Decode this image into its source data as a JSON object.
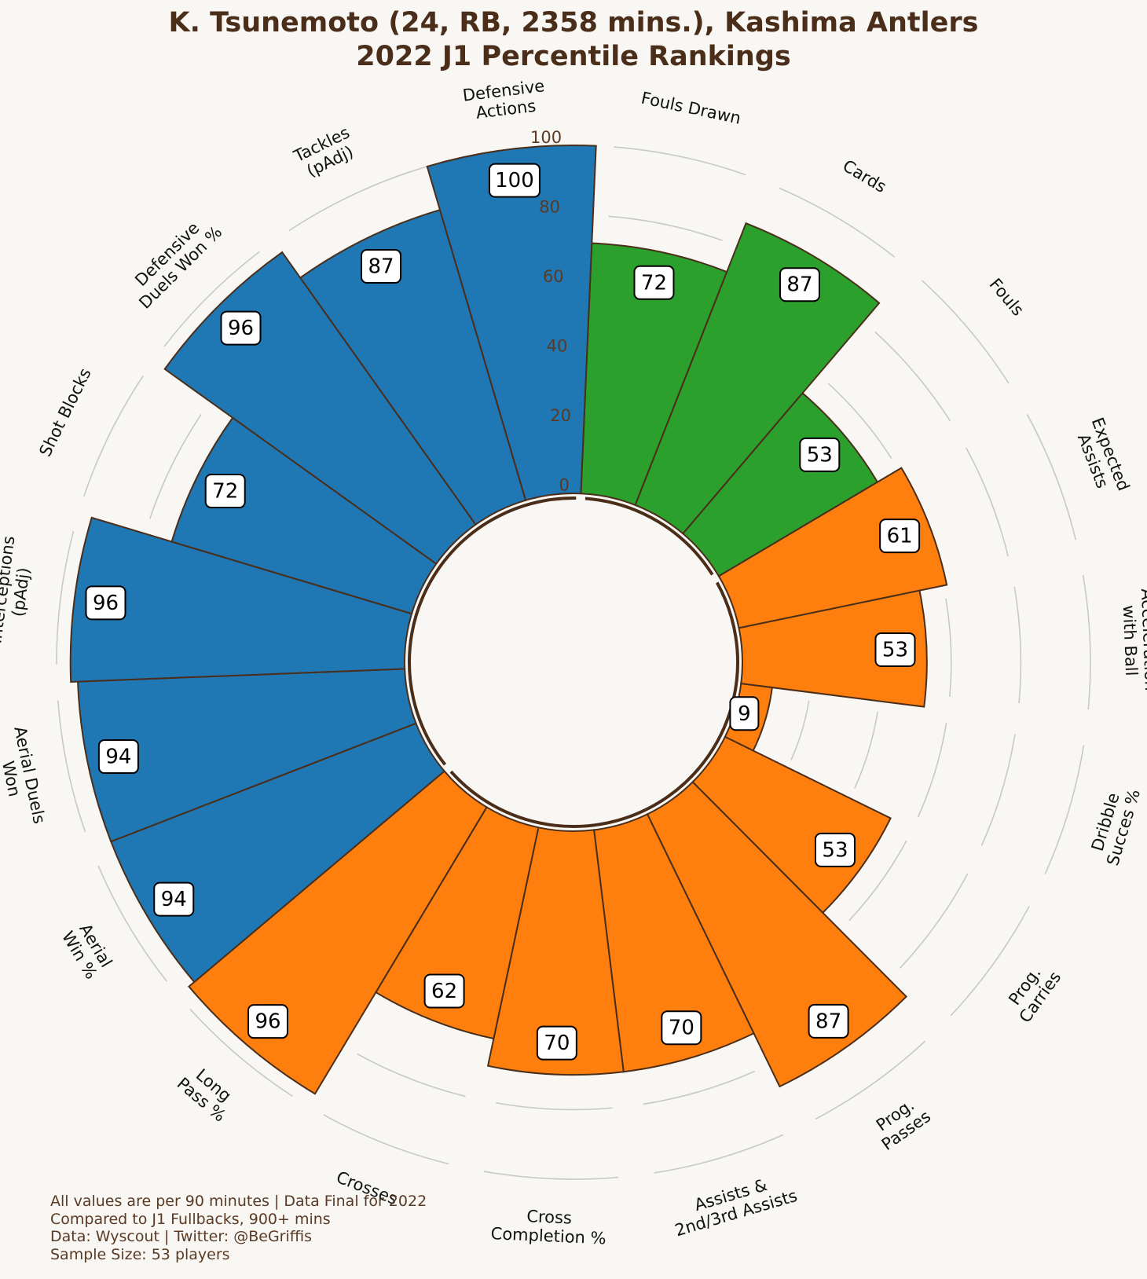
{
  "title": {
    "line1": "K. Tsunemoto (24, RB, 2358 mins.), Kashima Antlers",
    "line2": "2022 J1 Percentile Rankings"
  },
  "footer": {
    "line1": "All values are per 90 minutes | Data Final for 2022",
    "line2": "Compared to J1 Fullbacks, 900+ mins",
    "line3": "Data: Wyscout | Twitter: @BeGriffis",
    "line4": "Sample Size: 53 players"
  },
  "colors": {
    "background": "#f9f7f3",
    "defending": "#1f77b4",
    "discipline": "#2ca02c",
    "possession": "#ff7f0e",
    "edge": "#4a2e1a",
    "gridline": "#c8c8c8",
    "tick_text": "#5a3a24"
  },
  "chart_data": {
    "type": "bar",
    "subtype": "polar",
    "rlim": [
      0,
      100
    ],
    "radial_ticks": [
      "0",
      "20",
      "40",
      "60",
      "80",
      "100"
    ],
    "categories": [
      "Fouls Drawn",
      "Cards",
      "Fouls",
      "Expected\nAssists",
      "Acceleration\nwith Ball",
      "Dribble\nSucces %",
      "Prog.\nCarries",
      "Prog.\nPasses",
      "Assists &\n2nd/3rd Assists",
      "Cross\nCompletion %",
      "Crosses",
      "Long\nPass %",
      "Aerial\nWin %",
      "Aerial Duels\nWon",
      "Interceptions\n(pAdj)",
      "Shot Blocks",
      "Defensive\nDuels Won %",
      "Tackles\n(pAdj)",
      "Defensive\nActions"
    ],
    "values": [
      72,
      87,
      53,
      61,
      53,
      9,
      53,
      87,
      70,
      70,
      62,
      96,
      94,
      94,
      96,
      72,
      96,
      87,
      100
    ],
    "groups": [
      "discipline",
      "discipline",
      "discipline",
      "possession",
      "possession",
      "possession",
      "possession",
      "possession",
      "possession",
      "possession",
      "possession",
      "possession",
      "defending",
      "defending",
      "defending",
      "defending",
      "defending",
      "defending",
      "defending"
    ]
  }
}
